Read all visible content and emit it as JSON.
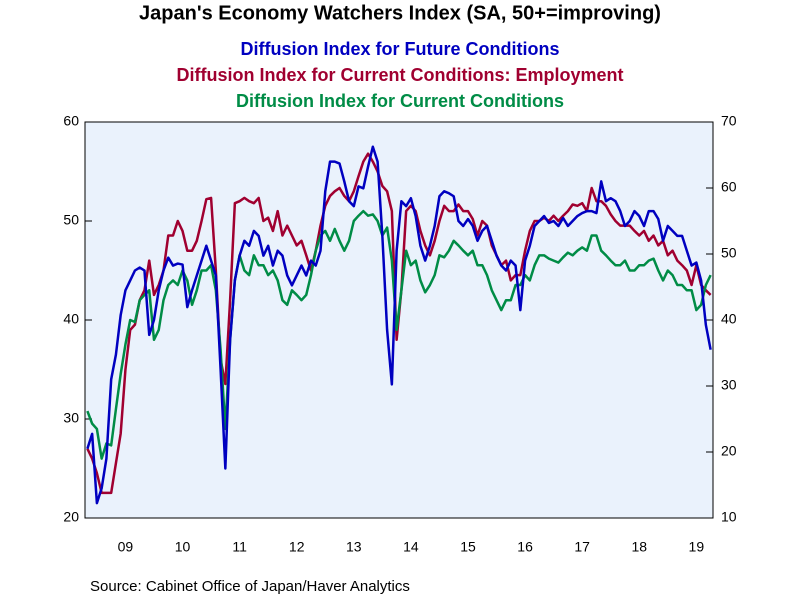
{
  "chart_data": {
    "type": "line",
    "title": "Japan's Economy Watchers Index (SA, 50+=improving)",
    "source": "Source:  Cabinet Office of Japan/Haver Analytics",
    "categories": [
      null,
      null,
      null,
      null,
      null,
      null,
      null,
      null,
      "09",
      null,
      null,
      null,
      null,
      null,
      null,
      null,
      null,
      null,
      null,
      null,
      "10",
      null,
      null,
      null,
      null,
      null,
      null,
      null,
      null,
      null,
      null,
      null,
      "11",
      null,
      null,
      null,
      null,
      null,
      null,
      null,
      null,
      null,
      null,
      null,
      "12",
      null,
      null,
      null,
      null,
      null,
      null,
      null,
      null,
      null,
      null,
      null,
      "13",
      null,
      null,
      null,
      null,
      null,
      null,
      null,
      null,
      null,
      null,
      null,
      "14",
      null,
      null,
      null,
      null,
      null,
      null,
      null,
      null,
      null,
      null,
      null,
      "15",
      null,
      null,
      null,
      null,
      null,
      null,
      null,
      null,
      null,
      null,
      null,
      "16",
      null,
      null,
      null,
      null,
      null,
      null,
      null,
      null,
      null,
      null,
      null,
      "17",
      null,
      null,
      null,
      null,
      null,
      null,
      null,
      null,
      null,
      null,
      null,
      "18",
      null,
      null,
      null,
      null,
      null,
      null,
      null,
      null,
      null,
      null,
      null,
      "19",
      null,
      null,
      null
    ],
    "ylim": [
      20,
      60
    ],
    "yticks": [
      20,
      30,
      40,
      50,
      60
    ],
    "y2lim": [
      10,
      70
    ],
    "y2ticks": [
      10,
      20,
      30,
      40,
      50,
      60,
      70
    ],
    "series": [
      {
        "name": "Diffusion Index for Future Conditions",
        "color": "#0000c0",
        "axis": "y",
        "values": [
          27,
          28.5,
          21.5,
          23,
          26,
          34,
          36.5,
          40.5,
          43,
          44,
          45,
          45.3,
          45,
          38.5,
          40,
          43,
          45,
          46.3,
          45.5,
          45.7,
          45.6,
          41.3,
          43,
          44.5,
          46,
          47.5,
          46,
          44.5,
          35,
          25,
          38,
          44,
          46.5,
          48,
          47.5,
          49,
          48.5,
          46.5,
          47.5,
          45.5,
          47,
          46.5,
          44.5,
          43.5,
          44.5,
          45.5,
          44.5,
          46,
          45.5,
          47,
          53,
          56,
          56,
          55.8,
          54,
          52,
          51.5,
          53.5,
          53.3,
          55.5,
          57.5,
          56,
          48.5,
          39,
          33.5,
          47,
          52,
          51.5,
          52.3,
          50.5,
          47.5,
          46,
          47.5,
          49.5,
          52.5,
          53,
          52.8,
          52.5,
          50,
          49.5,
          50.2,
          49.5,
          48,
          49,
          49.5,
          48,
          46.5,
          45.5,
          45,
          46,
          45.5,
          41,
          46,
          47.5,
          49.5,
          50,
          50.5,
          49.8,
          50,
          49.5,
          50.3,
          49.5,
          50,
          50.5,
          50.8,
          51,
          51,
          50.8,
          54,
          52,
          52.3,
          52,
          51,
          49.5,
          50,
          51,
          50.5,
          49.5,
          51,
          51,
          50.2,
          48,
          49.5,
          49,
          48.5,
          48.5,
          47,
          45.5,
          45.8,
          44,
          39.5,
          37
        ]
      },
      {
        "name": "Diffusion Index for Current Conditions: Employment",
        "color": "#a00030",
        "axis": "y2",
        "values": [
          20.5,
          19,
          16.8,
          13.8,
          13.8,
          13.8,
          18.3,
          22.8,
          32.5,
          38.5,
          39.3,
          43,
          44.5,
          49,
          43.8,
          45.3,
          47.5,
          52.8,
          52.8,
          55,
          53.5,
          50.5,
          50.5,
          52,
          55,
          58.3,
          58.5,
          47.5,
          34,
          30.3,
          43,
          57.7,
          58,
          58.5,
          58,
          57.7,
          58.5,
          55,
          55.5,
          53.5,
          56.5,
          52.8,
          54.3,
          52.8,
          51.3,
          52,
          49.8,
          47.5,
          50.5,
          54.3,
          57.3,
          58.8,
          59.5,
          60,
          58.8,
          58,
          59.5,
          61.8,
          64,
          65.2,
          64,
          62.5,
          60.3,
          59.5,
          56.5,
          37,
          44.5,
          56.5,
          57.3,
          56.5,
          53.5,
          51.3,
          49.8,
          52,
          55,
          57.3,
          56.5,
          56.5,
          57.5,
          56.5,
          56.5,
          55.3,
          52.8,
          55,
          54.3,
          51.3,
          49.8,
          48.3,
          49,
          46,
          46.8,
          46.8,
          50.5,
          53.5,
          55,
          55,
          55.5,
          55,
          55.8,
          55,
          55.8,
          56.5,
          57.5,
          57.3,
          57.7,
          56.5,
          60,
          58,
          58,
          57.3,
          56,
          55,
          54.3,
          54.3,
          54.3,
          53.5,
          52.8,
          53.5,
          52,
          52.8,
          51.3,
          52,
          49.8,
          50.5,
          49,
          48.3,
          47.5,
          45.3,
          48.3,
          45.3,
          44.5,
          43.8
        ]
      },
      {
        "name": "Diffusion Index for Current Conditions",
        "color": "#008c46",
        "axis": "y2",
        "values": [
          26.2,
          24.3,
          23.5,
          19,
          21.3,
          21,
          26.5,
          31.8,
          36.3,
          40,
          39.7,
          43,
          43.8,
          44.5,
          37,
          38.5,
          43,
          45.3,
          46,
          45.3,
          47.5,
          46,
          42.3,
          44.5,
          47.5,
          47.5,
          48.3,
          44.5,
          35.5,
          23.5,
          37,
          46,
          49.8,
          47.5,
          46.8,
          49.8,
          48.3,
          48.3,
          46.8,
          47.5,
          46,
          43,
          42.3,
          44.5,
          43.8,
          43,
          43.8,
          46.8,
          50.5,
          52.8,
          53.5,
          52,
          53.8,
          52,
          50.5,
          52,
          55,
          55.8,
          56.5,
          55.8,
          56,
          55,
          52.8,
          54,
          49,
          38.5,
          44.5,
          50.5,
          48.3,
          49,
          46,
          44.2,
          45.3,
          46.8,
          49.8,
          49.5,
          50.5,
          52,
          51.3,
          50.5,
          49.8,
          50.5,
          48.3,
          48.3,
          46.8,
          44.5,
          43,
          41.5,
          43,
          43,
          45.3,
          45.3,
          46.8,
          46,
          48.3,
          49.8,
          49.8,
          49.3,
          49,
          48.7,
          49.5,
          50.2,
          49.8,
          50.5,
          51,
          50.5,
          52.8,
          52.8,
          50.5,
          49.8,
          49,
          48.3,
          48.3,
          49,
          47.5,
          47.5,
          48.3,
          48.3,
          49,
          49.3,
          47.5,
          46,
          47.5,
          46.8,
          45.3,
          45.3,
          44.5,
          44.5,
          41.5,
          42.3,
          45.3,
          46.8
        ]
      }
    ]
  }
}
